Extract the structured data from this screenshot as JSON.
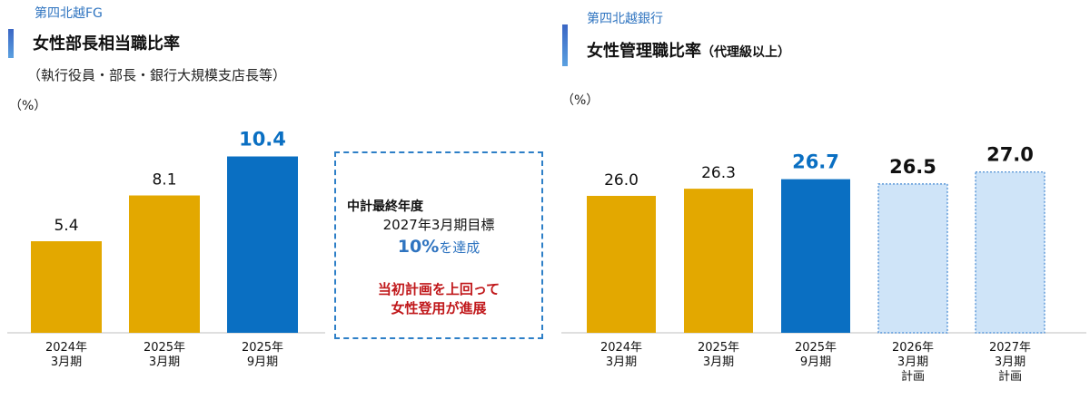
{
  "left": {
    "company": "第四北越FG",
    "title": "女性部長相当職比率",
    "subtitle": "（執行役員・部長・銀行大規模支店長等）",
    "unit": "（%）",
    "callout": {
      "heading": "中計最終年度",
      "target": "2027年3月期目標",
      "goal_value": "10%",
      "goal_suffix": "を達成",
      "note_line1": "当初計画を上回って",
      "note_line2": "女性登用が進展"
    }
  },
  "right": {
    "company": "第四北越銀行",
    "title": "女性管理職比率",
    "title_sub": "（代理級以上）",
    "unit": "（%）"
  },
  "colors": {
    "actual": "#e3a800",
    "latest": "#0a6fc2",
    "plan_fill": "#cfe4f8",
    "plan_border": "#3f85d0",
    "accent_text": "#2f74c0",
    "note_red": "#c0171a"
  },
  "chart_data": [
    {
      "type": "bar",
      "title": "女性部長相当職比率",
      "ylabel": "（%）",
      "categories": [
        [
          "2024年",
          "3月期"
        ],
        [
          "2025年",
          "3月期"
        ],
        [
          "2025年",
          "9月期"
        ]
      ],
      "values": [
        5.4,
        8.1,
        10.4
      ],
      "labels": [
        "5.4",
        "8.1",
        "10.4"
      ],
      "bar_styles": [
        "actual",
        "actual",
        "latest"
      ],
      "label_styles": [
        "normal",
        "normal",
        "highlight"
      ]
    },
    {
      "type": "bar",
      "title": "女性管理職比率",
      "ylabel": "（%）",
      "categories": [
        [
          "2024年",
          "3月期"
        ],
        [
          "2025年",
          "3月期"
        ],
        [
          "2025年",
          "9月期"
        ],
        [
          "2026年",
          "3月期",
          "計画"
        ],
        [
          "2027年",
          "3月期",
          "計画"
        ]
      ],
      "values": [
        26.0,
        26.3,
        26.7,
        26.5,
        27.0
      ],
      "labels": [
        "26.0",
        "26.3",
        "26.7",
        "26.5",
        "27.0"
      ],
      "bar_styles": [
        "actual",
        "actual",
        "latest",
        "plan",
        "plan"
      ],
      "label_styles": [
        "normal",
        "normal",
        "highlight",
        "bold",
        "bold"
      ]
    }
  ]
}
